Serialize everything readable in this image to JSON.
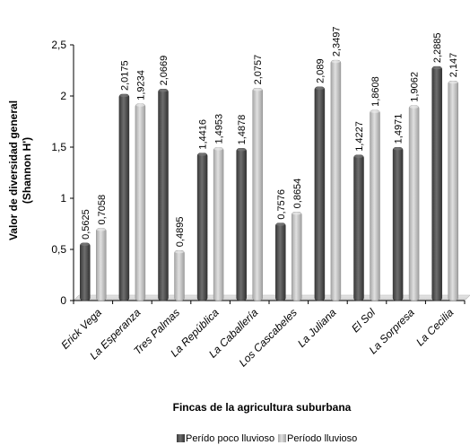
{
  "chart_data": {
    "type": "bar",
    "title": "",
    "xlabel": "Fincas de la agricultura suburbana",
    "ylabel_line1": "Valor de diversidad general",
    "ylabel_line2": "(Shannon H')",
    "ylim": [
      0,
      2.5
    ],
    "yticks": [
      "0",
      "0,5",
      "1",
      "1,5",
      "2",
      "2,5"
    ],
    "categories": [
      "Erick Vega",
      "La Esperanza",
      "Tres Palmas",
      "La República",
      "La Caballería",
      "Los Cascabeles",
      "La Juliana",
      "El Sol",
      "La Sorpresa",
      "La Cecilia"
    ],
    "series": [
      {
        "name": "Perído poco lluvioso",
        "color": "#555555",
        "values": [
          0.5625,
          2.0175,
          2.0669,
          1.4416,
          1.4878,
          0.7576,
          2.089,
          1.4227,
          1.4971,
          2.2885
        ],
        "labels": [
          "0,5625",
          "2,0175",
          "2,0669",
          "1,4416",
          "1,4878",
          "0,7576",
          "2,089",
          "1,4227",
          "1,4971",
          "2,2885"
        ]
      },
      {
        "name": "Período lluvioso",
        "color": "#bdbdbd",
        "values": [
          0.7058,
          1.9234,
          0.4895,
          1.4953,
          2.0757,
          0.8654,
          2.3497,
          1.8608,
          1.9062,
          2.147
        ],
        "labels": [
          "0,7058",
          "1,9234",
          "0,4895",
          "1,4953",
          "2,0757",
          "0,8654",
          "2,3497",
          "1,8608",
          "1,9062",
          "2,147"
        ]
      }
    ],
    "grid": false,
    "legend_position": "bottom"
  }
}
